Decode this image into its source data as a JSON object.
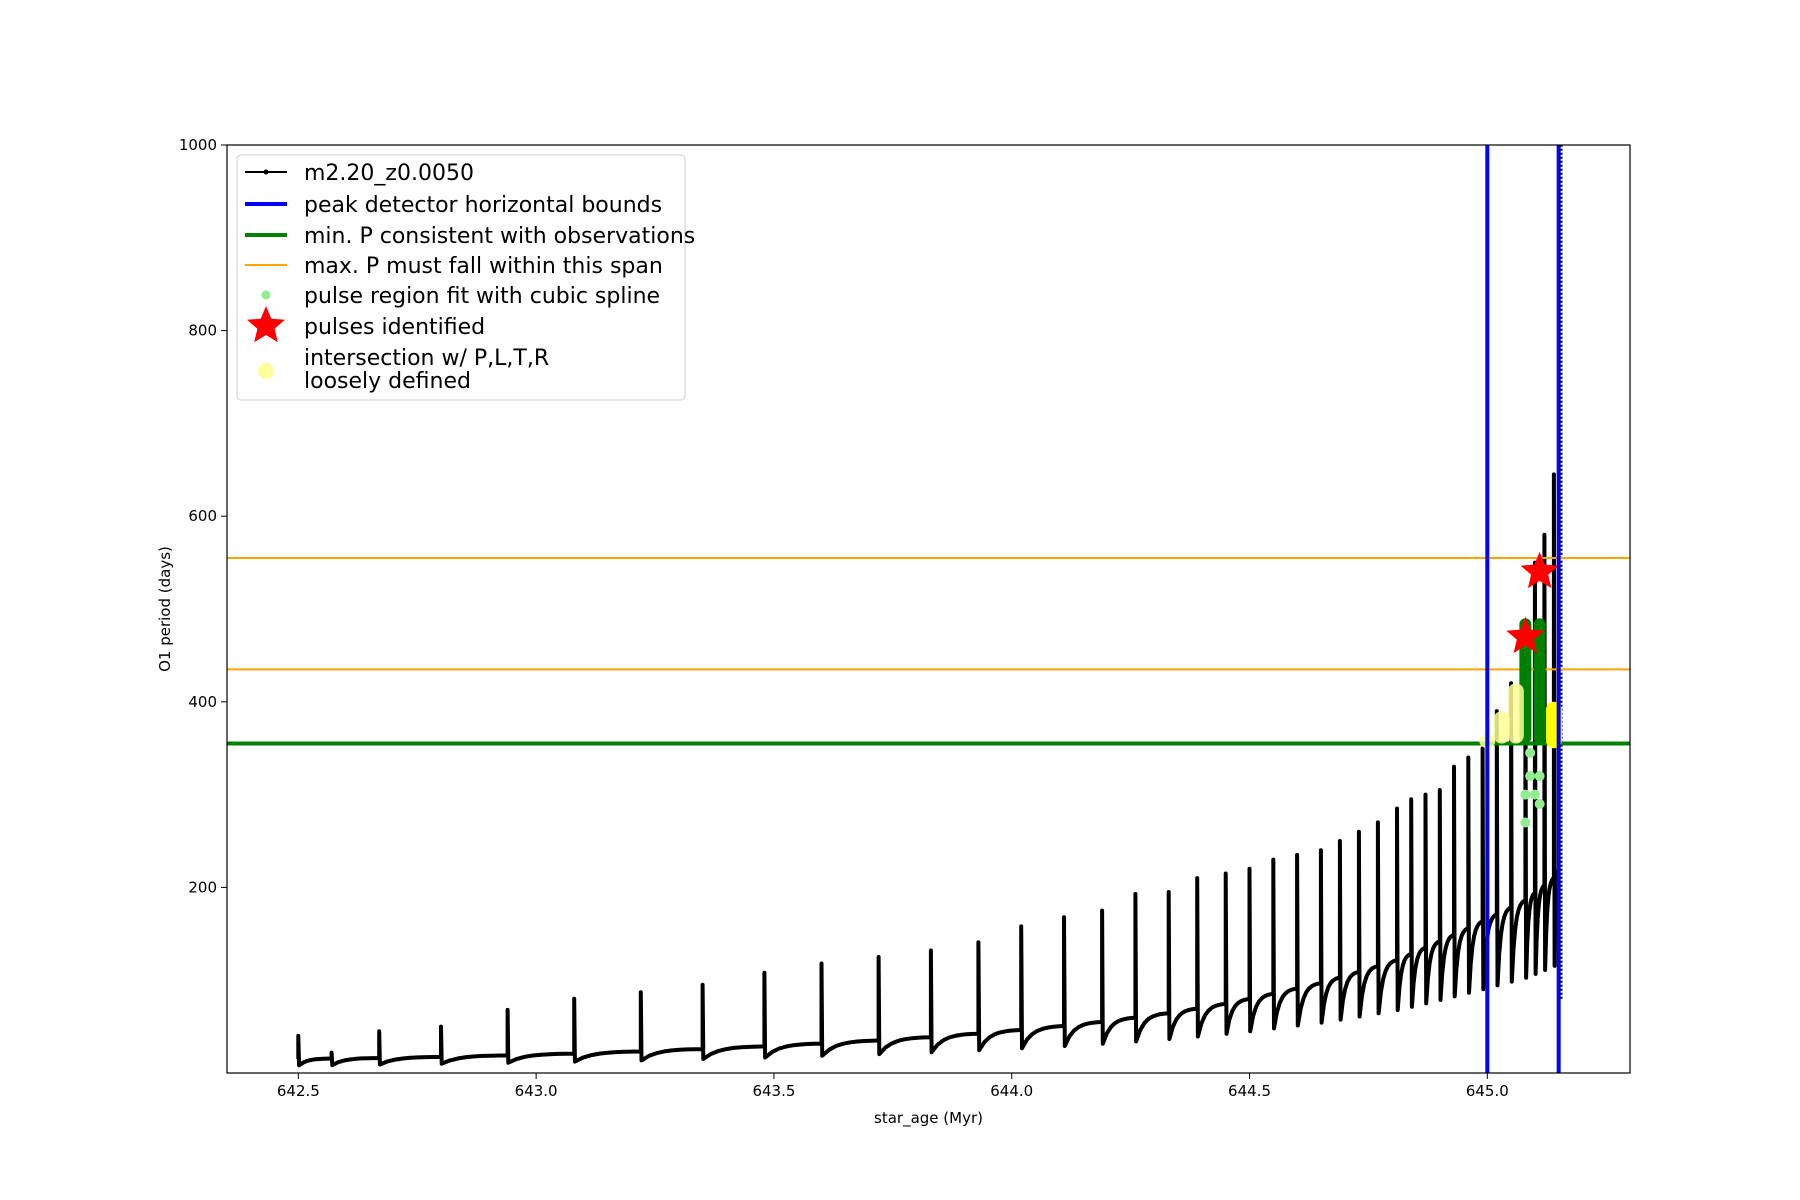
{
  "chart_data": {
    "type": "line",
    "title": "",
    "xlabel": "star_age (Myr)",
    "ylabel": "O1 period (days)",
    "xlim": [
      642.35,
      645.3
    ],
    "ylim": [
      0,
      1000
    ],
    "x_ticks": [
      "642.5",
      "643.0",
      "643.5",
      "644.0",
      "644.5",
      "645.0"
    ],
    "y_ticks": [
      "200",
      "400",
      "600",
      "800",
      "1000"
    ],
    "grid": false,
    "legend_position": "upper-left",
    "legend": [
      {
        "label": "m2.20_z0.0050",
        "kind": "line-marker",
        "color": "#000000"
      },
      {
        "label": "peak detector horizontal bounds",
        "kind": "line",
        "color": "#0000ff"
      },
      {
        "label": "min. P consistent with observations",
        "kind": "line",
        "color": "#008000"
      },
      {
        "label": "max. P must fall within this span",
        "kind": "line",
        "color": "#ffa500"
      },
      {
        "label": "pulse region fit with cubic spline",
        "kind": "dot",
        "color": "#90ee90"
      },
      {
        "label": "pulses identified",
        "kind": "star",
        "color": "#ff0000"
      },
      {
        "label": "intersection w/ P,L,T,R",
        "label2": "loosely defined",
        "kind": "dot",
        "color": "#ffff99"
      }
    ],
    "series": [
      {
        "name": "m2.20_z0.0050",
        "color": "#000000",
        "pulse_ages": [
          642.5,
          642.57,
          642.67,
          642.8,
          642.94,
          643.08,
          643.22,
          643.35,
          643.48,
          643.6,
          643.72,
          643.83,
          643.93,
          644.02,
          644.11,
          644.19,
          644.26,
          644.33,
          644.39,
          644.45,
          644.5,
          644.55,
          644.6,
          644.65,
          644.69,
          644.73,
          644.77,
          644.81,
          644.84,
          644.87,
          644.9,
          644.93,
          644.96,
          644.99,
          645.02,
          645.05,
          645.08,
          645.1,
          645.12,
          645.14
        ],
        "peak_periods": [
          40,
          22,
          45,
          50,
          68,
          80,
          87,
          95,
          108,
          118,
          125,
          132,
          141,
          158,
          168,
          175,
          193,
          195,
          210,
          215,
          220,
          230,
          235,
          240,
          250,
          260,
          270,
          285,
          295,
          300,
          305,
          330,
          340,
          350,
          390,
          420,
          460,
          550,
          580,
          645
        ],
        "baseline_start": 15,
        "baseline_end": 210
      },
      {
        "name": "pulse region fit with cubic spline",
        "color": "#90ee90",
        "x": [
          645.08,
          645.08,
          645.09,
          645.09,
          645.1,
          645.11,
          645.11
        ],
        "y": [
          270,
          300,
          320,
          345,
          300,
          320,
          290
        ]
      },
      {
        "name": "pulses identified",
        "color": "#ff0000",
        "x": [
          645.08,
          645.11
        ],
        "y": [
          470,
          540
        ]
      }
    ],
    "vertical_lines": [
      {
        "x": 645.0,
        "color": "#0000ff"
      },
      {
        "x": 645.15,
        "color": "#0000ff"
      }
    ],
    "horizontal_lines": [
      {
        "y": 355,
        "color": "#008000"
      },
      {
        "y": 435,
        "color": "#ffa500"
      },
      {
        "y": 555,
        "color": "#ffa500"
      }
    ],
    "highlight_regions": [
      {
        "name": "green-fit-band-1",
        "x": 645.08,
        "y": [
          355,
          490
        ],
        "color": "#008000"
      },
      {
        "name": "green-fit-band-2",
        "x": 645.11,
        "y": [
          355,
          490
        ],
        "color": "#008000"
      },
      {
        "name": "yellow-band-1",
        "x": 645.0,
        "y": [
          350,
          365
        ],
        "color": "#ffff99"
      },
      {
        "name": "yellow-band-2",
        "x": 645.03,
        "y": [
          355,
          390
        ],
        "color": "#ffff99"
      },
      {
        "name": "yellow-band-3",
        "x": 645.06,
        "y": [
          355,
          420
        ],
        "color": "#ffff99"
      },
      {
        "name": "yellow-band-4",
        "x": 645.14,
        "y": [
          350,
          400
        ],
        "color": "#ffff00"
      }
    ]
  }
}
